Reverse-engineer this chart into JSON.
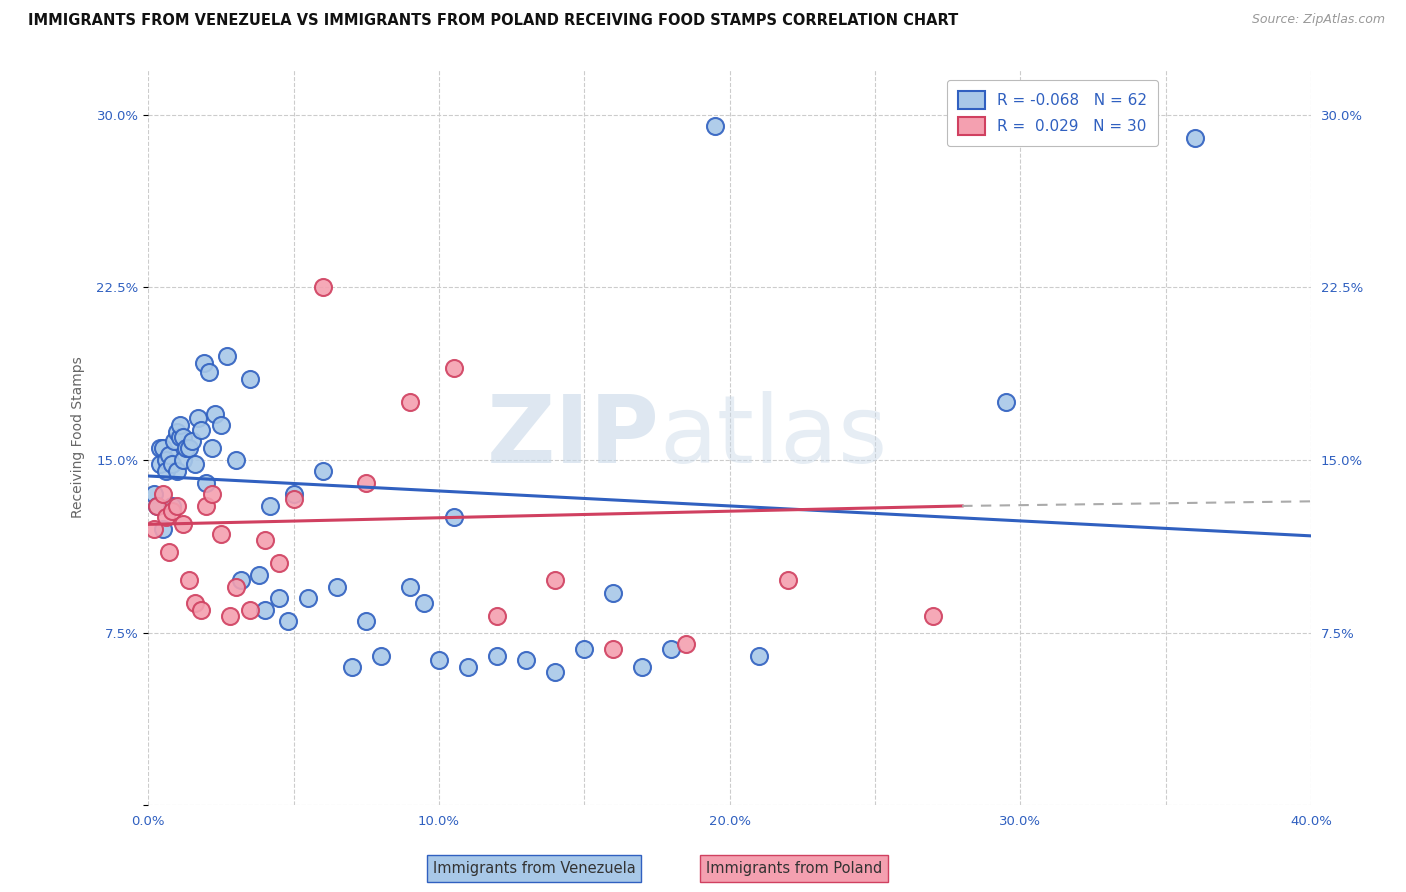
{
  "title": "IMMIGRANTS FROM VENEZUELA VS IMMIGRANTS FROM POLAND RECEIVING FOOD STAMPS CORRELATION CHART",
  "source": "Source: ZipAtlas.com",
  "ylabel": "Receiving Food Stamps",
  "xlim": [
    0.0,
    0.4
  ],
  "ylim": [
    0.0,
    0.32
  ],
  "xtick_labels": [
    "0.0%",
    "",
    "10.0%",
    "",
    "20.0%",
    "",
    "30.0%",
    "",
    "40.0%"
  ],
  "xtick_vals": [
    0.0,
    0.05,
    0.1,
    0.15,
    0.2,
    0.25,
    0.3,
    0.35,
    0.4
  ],
  "ytick_vals": [
    0.0,
    0.075,
    0.15,
    0.225,
    0.3
  ],
  "ytick_labels": [
    "",
    "7.5%",
    "15.0%",
    "22.5%",
    "30.0%"
  ],
  "legend_r_venezuela": "-0.068",
  "legend_n_venezuela": "62",
  "legend_r_poland": "0.029",
  "legend_n_poland": "30",
  "color_venezuela": "#a8c8e8",
  "color_poland": "#f4a0b0",
  "color_trendline_venezuela": "#3060c0",
  "color_trendline_poland": "#d04060",
  "color_trendline_dashed": "#aaaaaa",
  "venezuela_x": [
    0.002,
    0.003,
    0.004,
    0.004,
    0.005,
    0.005,
    0.006,
    0.006,
    0.007,
    0.008,
    0.008,
    0.009,
    0.01,
    0.01,
    0.011,
    0.011,
    0.012,
    0.012,
    0.013,
    0.014,
    0.015,
    0.016,
    0.017,
    0.018,
    0.019,
    0.02,
    0.021,
    0.022,
    0.023,
    0.025,
    0.027,
    0.03,
    0.032,
    0.035,
    0.038,
    0.04,
    0.042,
    0.045,
    0.048,
    0.05,
    0.055,
    0.06,
    0.065,
    0.07,
    0.075,
    0.08,
    0.09,
    0.095,
    0.1,
    0.105,
    0.11,
    0.12,
    0.13,
    0.14,
    0.15,
    0.16,
    0.17,
    0.18,
    0.195,
    0.21,
    0.295,
    0.36
  ],
  "venezuela_y": [
    0.135,
    0.13,
    0.148,
    0.155,
    0.12,
    0.155,
    0.15,
    0.145,
    0.152,
    0.148,
    0.13,
    0.158,
    0.145,
    0.162,
    0.16,
    0.165,
    0.15,
    0.16,
    0.155,
    0.155,
    0.158,
    0.148,
    0.168,
    0.163,
    0.192,
    0.14,
    0.188,
    0.155,
    0.17,
    0.165,
    0.195,
    0.15,
    0.098,
    0.185,
    0.1,
    0.085,
    0.13,
    0.09,
    0.08,
    0.135,
    0.09,
    0.145,
    0.095,
    0.06,
    0.08,
    0.065,
    0.095,
    0.088,
    0.063,
    0.125,
    0.06,
    0.065,
    0.063,
    0.058,
    0.068,
    0.092,
    0.06,
    0.068,
    0.295,
    0.065,
    0.175,
    0.29
  ],
  "poland_x": [
    0.002,
    0.003,
    0.005,
    0.006,
    0.007,
    0.008,
    0.01,
    0.012,
    0.014,
    0.016,
    0.018,
    0.02,
    0.022,
    0.025,
    0.028,
    0.03,
    0.035,
    0.04,
    0.045,
    0.05,
    0.06,
    0.075,
    0.09,
    0.105,
    0.12,
    0.14,
    0.16,
    0.185,
    0.22,
    0.27
  ],
  "poland_y": [
    0.12,
    0.13,
    0.135,
    0.125,
    0.11,
    0.128,
    0.13,
    0.122,
    0.098,
    0.088,
    0.085,
    0.13,
    0.135,
    0.118,
    0.082,
    0.095,
    0.085,
    0.115,
    0.105,
    0.133,
    0.225,
    0.14,
    0.175,
    0.19,
    0.082,
    0.098,
    0.068,
    0.07,
    0.098,
    0.082
  ],
  "watermark_zip": "ZIP",
  "watermark_atlas": "atlas",
  "background_color": "#ffffff",
  "grid_color": "#cccccc",
  "title_fontsize": 10.5,
  "axis_label_fontsize": 10,
  "tick_fontsize": 9.5
}
